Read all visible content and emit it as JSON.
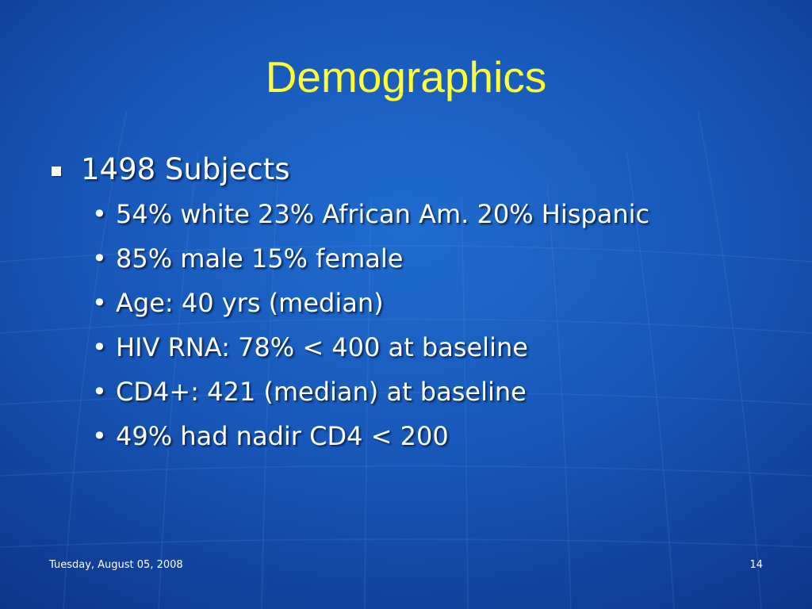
{
  "slide": {
    "title": "Demographics",
    "main_bullet": "1498 Subjects",
    "sub_bullets": [
      "54% white  23% African Am.  20% Hispanic",
      "85% male 15% female",
      "Age: 40 yrs (median)",
      "HIV RNA: 78% < 400 at baseline",
      "CD4+: 421 (median) at baseline",
      "49% had nadir CD4 < 200"
    ],
    "sub_bullet_glyph": "•",
    "date": "Tuesday, August 05, 2008",
    "page_number": "14"
  },
  "colors": {
    "background": "#1757b8",
    "title": "#ffff33",
    "text": "#ffffff"
  }
}
